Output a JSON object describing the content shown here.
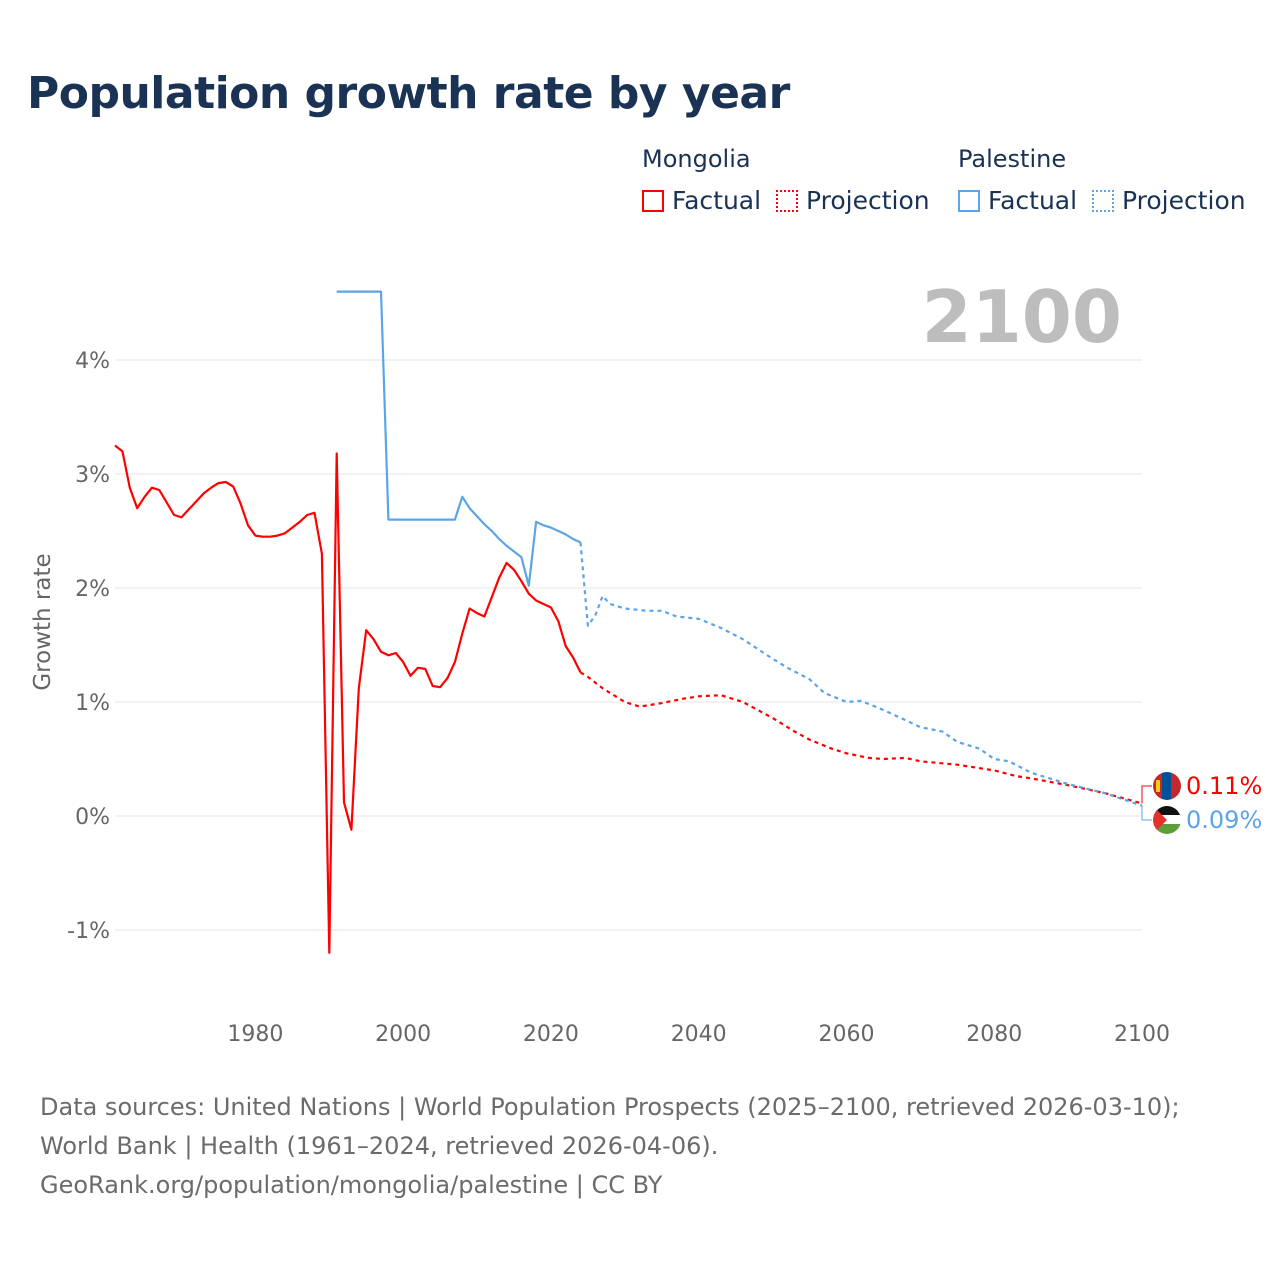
{
  "title": "Population growth rate by year",
  "legend": {
    "groups": [
      {
        "name": "Mongolia",
        "color": "#ff0000",
        "factual": "Factual",
        "projection": "Projection"
      },
      {
        "name": "Palestine",
        "color": "#5ba4e8",
        "factual": "Factual",
        "projection": "Projection"
      }
    ]
  },
  "year_label": "2100",
  "footer": {
    "sources": "Data sources: United Nations | World Population Prospects (2025–2100, retrieved 2026-03-10); World Bank | Health (1961–2024, retrieved 2026-04-06).",
    "credit": "GeoRank.org/population/mongolia/palestine | CC BY"
  },
  "chart_data": {
    "type": "line",
    "title": "Population growth rate by year",
    "xlabel": "",
    "ylabel": "Growth rate",
    "xlim": [
      1961,
      2100
    ],
    "ylim": [
      -1.6,
      5
    ],
    "x_ticks": [
      1980,
      2000,
      2020,
      2040,
      2060,
      2080,
      2100
    ],
    "y_ticks": [
      -1,
      0,
      1,
      2,
      3,
      4
    ],
    "y_tick_labels": [
      "-1%",
      "0%",
      "1%",
      "2%",
      "3%",
      "4%"
    ],
    "grid": true,
    "end_labels": [
      {
        "series": "Mongolia",
        "text": "0.11%"
      },
      {
        "series": "Palestine",
        "text": "0.09%"
      }
    ],
    "series": [
      {
        "name": "Mongolia Factual",
        "color": "#ff0000",
        "style": "solid",
        "x": [
          1961,
          1962,
          1963,
          1964,
          1965,
          1966,
          1967,
          1968,
          1969,
          1970,
          1971,
          1972,
          1973,
          1974,
          1975,
          1976,
          1977,
          1978,
          1979,
          1980,
          1981,
          1982,
          1983,
          1984,
          1985,
          1986,
          1987,
          1988,
          1989,
          1990,
          1991,
          1992,
          1993,
          1994,
          1995,
          1996,
          1997,
          1998,
          1999,
          2000,
          2001,
          2002,
          2003,
          2004,
          2005,
          2006,
          2007,
          2008,
          2009,
          2010,
          2011,
          2012,
          2013,
          2014,
          2015,
          2016,
          2017,
          2018,
          2019,
          2020,
          2021,
          2022,
          2023,
          2024
        ],
        "y": [
          3.25,
          3.2,
          2.88,
          2.7,
          2.8,
          2.88,
          2.86,
          2.75,
          2.64,
          2.62,
          2.69,
          2.76,
          2.83,
          2.88,
          2.92,
          2.93,
          2.89,
          2.74,
          2.55,
          2.46,
          2.45,
          2.45,
          2.46,
          2.48,
          2.53,
          2.58,
          2.64,
          2.66,
          2.3,
          -1.2,
          3.18,
          0.12,
          -0.12,
          1.12,
          1.63,
          1.55,
          1.44,
          1.41,
          1.43,
          1.35,
          1.23,
          1.3,
          1.29,
          1.14,
          1.13,
          1.21,
          1.35,
          1.6,
          1.82,
          1.78,
          1.75,
          1.92,
          2.09,
          2.22,
          2.16,
          2.06,
          1.95,
          1.89,
          1.86,
          1.83,
          1.71,
          1.49,
          1.39,
          1.26
        ]
      },
      {
        "name": "Mongolia Projection",
        "color": "#ff0000",
        "style": "dotted",
        "x": [
          2024,
          2025,
          2027,
          2030,
          2032,
          2035,
          2038,
          2040,
          2043,
          2046,
          2050,
          2053,
          2055,
          2058,
          2060,
          2063,
          2065,
          2068,
          2070,
          2075,
          2080,
          2083,
          2085,
          2090,
          2095,
          2100
        ],
        "y": [
          1.26,
          1.22,
          1.12,
          1.0,
          0.96,
          0.99,
          1.03,
          1.05,
          1.06,
          1.0,
          0.86,
          0.74,
          0.67,
          0.59,
          0.55,
          0.51,
          0.5,
          0.51,
          0.48,
          0.45,
          0.4,
          0.35,
          0.33,
          0.27,
          0.2,
          0.11
        ]
      },
      {
        "name": "Palestine Factual",
        "color": "#5ba4e8",
        "style": "solid",
        "x": [
          1991,
          1997,
          1998,
          2007,
          2008,
          2009,
          2010,
          2011,
          2012,
          2013,
          2014,
          2015,
          2016,
          2017,
          2018,
          2019,
          2020,
          2021,
          2022,
          2023,
          2024
        ],
        "y": [
          4.6,
          4.6,
          2.6,
          2.6,
          2.8,
          2.7,
          2.63,
          2.56,
          2.5,
          2.43,
          2.37,
          2.32,
          2.27,
          2.02,
          2.58,
          2.55,
          2.53,
          2.5,
          2.47,
          2.43,
          2.4
        ]
      },
      {
        "name": "Palestine Projection",
        "color": "#5ba4e8",
        "style": "dotted",
        "x": [
          2024,
          2025,
          2026,
          2027,
          2028,
          2030,
          2033,
          2035,
          2037,
          2040,
          2043,
          2046,
          2050,
          2052,
          2055,
          2057,
          2060,
          2062,
          2065,
          2068,
          2070,
          2073,
          2075,
          2078,
          2080,
          2082,
          2085,
          2088,
          2090,
          2095,
          2100
        ],
        "y": [
          2.4,
          1.67,
          1.76,
          1.93,
          1.86,
          1.82,
          1.8,
          1.8,
          1.75,
          1.73,
          1.65,
          1.55,
          1.38,
          1.3,
          1.2,
          1.08,
          1.0,
          1.01,
          0.93,
          0.84,
          0.78,
          0.74,
          0.65,
          0.59,
          0.5,
          0.48,
          0.38,
          0.32,
          0.28,
          0.2,
          0.09
        ]
      }
    ]
  }
}
